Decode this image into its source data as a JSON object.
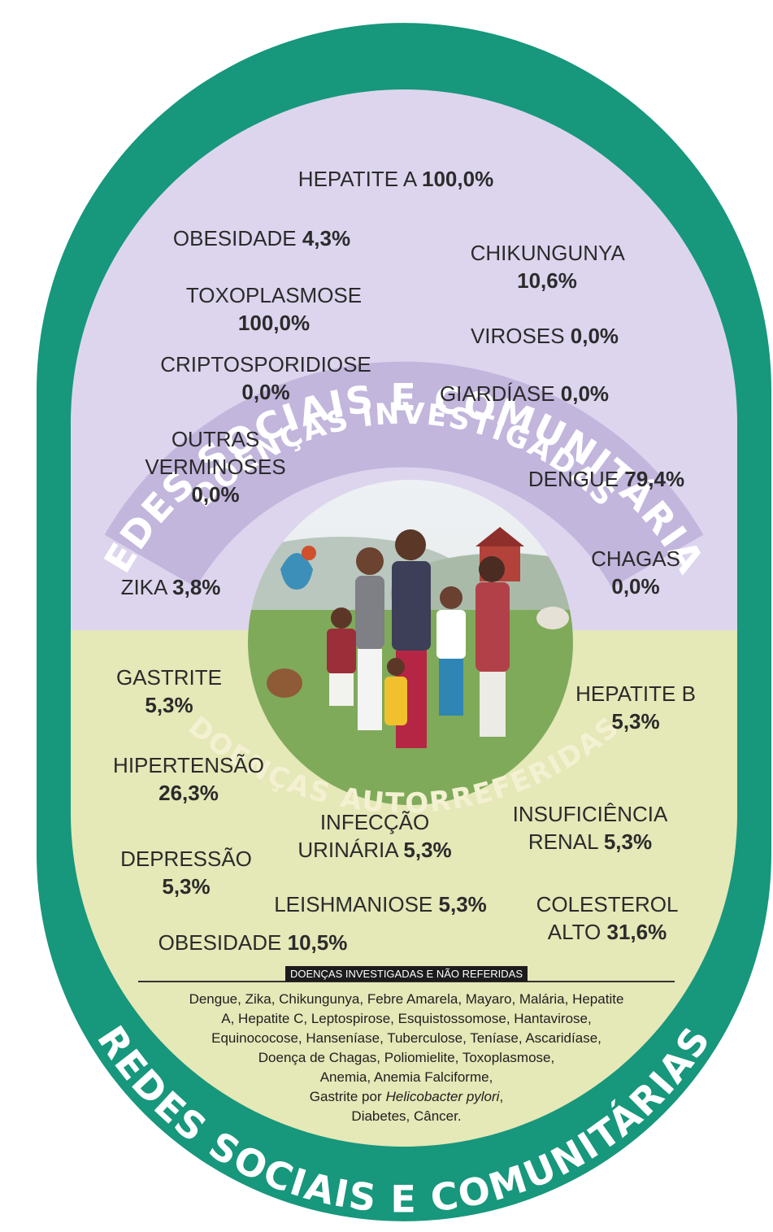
{
  "header": {
    "title": "REDES SOCIAIS E COMUNITÁRIAS",
    "subtitle": "DOENÇAS INVESTIGADAS"
  },
  "investigated": [
    {
      "name": "HEPATITE A",
      "value": "100,0%"
    },
    {
      "name": "OBESIDADE",
      "value": "4,3%"
    },
    {
      "name": "CHIKUNGUNYA",
      "value": "10,6%"
    },
    {
      "name": "TOXOPLASMOSE",
      "value": "100,0%"
    },
    {
      "name": "VIROSES",
      "value": "0,0%"
    },
    {
      "name": "CRIPTOSPORIDIOSE",
      "value": "0,0%"
    },
    {
      "name": "GIARDÍASE",
      "value": "0,0%"
    },
    {
      "name": "OUTRAS VERMINOSES",
      "value": "0,0%"
    },
    {
      "name": "DENGUE",
      "value": "79,4%"
    },
    {
      "name": "CHAGAS",
      "value": "0,0%"
    },
    {
      "name": "ZIKA",
      "value": "3,8%"
    }
  ],
  "self_reported": [
    {
      "name": "GASTRITE",
      "value": "5,3%"
    },
    {
      "name": "HEPATITE B",
      "value": "5,3%"
    },
    {
      "name": "HIPERTENSÃO",
      "value": "26,3%"
    },
    {
      "name": "INFECÇÃO URINÁRIA",
      "value": "5,3%"
    },
    {
      "name": "INSUFICIÊNCIA RENAL",
      "value": "5,3%"
    },
    {
      "name": "DEPRESSÃO",
      "value": "5,3%"
    },
    {
      "name": "LEISHMANIOSE",
      "value": "5,3%"
    },
    {
      "name": "COLESTEROL ALTO",
      "value": "31,6%"
    },
    {
      "name": "OBESIDADE",
      "value": "10,5%"
    }
  ],
  "notes": {
    "label": "DOENÇAS INVESTIGADAS E NÃO REFERIDAS",
    "lines": [
      "Dengue, Zika, Chikungunya, Febre Amarela, Mayaro, Malária, Hepatite",
      "A, Hepatite C, Leptospirose, Esquistossomose, Hantavirose,",
      "Equinococose, Hanseníase, Tuberculose, Teníase, Ascaridíase,",
      "Doença de Chagas, Poliomielite, Toxoplasmose,",
      "Anemia, Anemia Falciforme,",
      [
        "Gastrite por",
        "Helicobacter pylori",
        ","
      ],
      "Diabetes, Câncer."
    ]
  },
  "footer": {
    "subtitle": "DOENÇAS AUTORREFERIDAS",
    "title": "REDES SOCIAIS E COMUNITÁRIAS"
  }
}
